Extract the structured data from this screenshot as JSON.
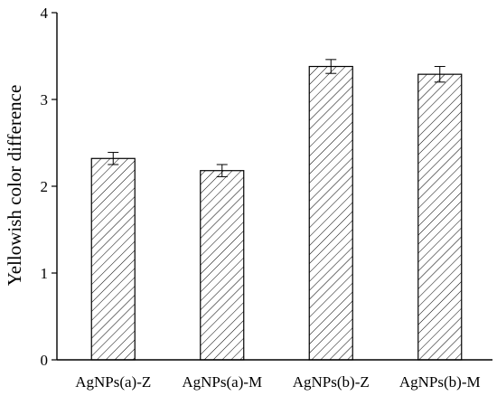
{
  "chart_data": {
    "type": "bar",
    "ylabel": "Yellowish color difference",
    "xlabel": "",
    "categories": [
      "AgNPs(a)-Z",
      "AgNPs(a)-M",
      "AgNPs(b)-Z",
      "AgNPs(b)-M"
    ],
    "values": [
      2.32,
      2.18,
      3.38,
      3.29
    ],
    "errors": [
      0.07,
      0.07,
      0.08,
      0.09
    ],
    "ylim": [
      0,
      4
    ],
    "yticks": [
      "0",
      "1",
      "2",
      "3",
      "4"
    ],
    "bar_fill": "diagonal hatch",
    "grid": false,
    "colors": {
      "line": "#000000",
      "background": "#ffffff"
    }
  }
}
